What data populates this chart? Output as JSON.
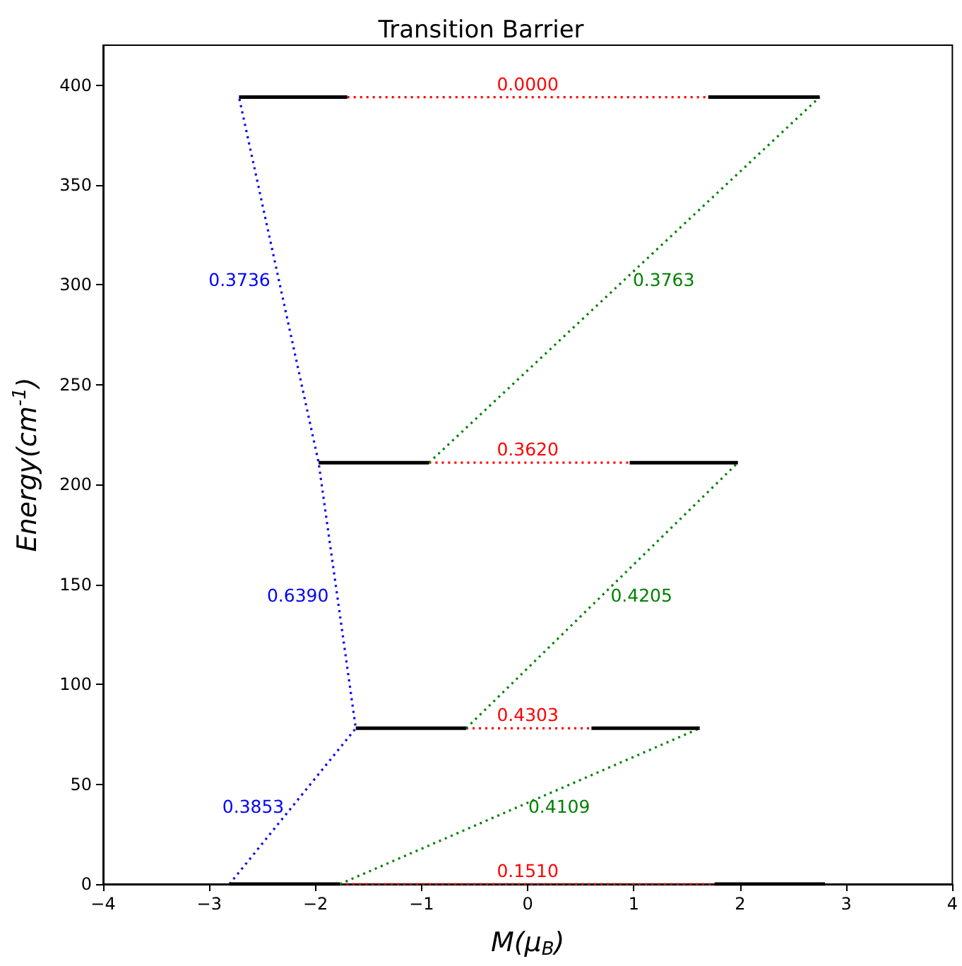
{
  "chart_data": {
    "type": "line",
    "title": "Transition Barrier",
    "xlabel": "M(μ$_{B}$)",
    "ylabel": "Energy(cm$^{-1}$)",
    "xlim": [
      -4,
      4
    ],
    "xticks": [
      -4,
      -3,
      -2,
      -1,
      0,
      1,
      2,
      3,
      4
    ],
    "ylim": [
      0,
      420
    ],
    "yticks": [
      0,
      50,
      100,
      150,
      200,
      250,
      300,
      350,
      400
    ],
    "marker": "none",
    "series": [
      {
        "color": "#ff0000",
        "line_style": "dotted",
        "x": [
          -1.7,
          0,
          1.7
        ],
        "values": [
          394,
          394,
          394
        ]
      },
      {
        "color": "#ff0000",
        "line_style": "dotted",
        "x": [
          -0.93,
          0,
          0.96
        ],
        "values": [
          211,
          211,
          211
        ]
      },
      {
        "color": "#ff0000",
        "line_style": "dotted",
        "x": [
          -0.58,
          0,
          0.6
        ],
        "values": [
          78,
          78,
          78
        ]
      },
      {
        "color": "#ff0000",
        "line_style": "dotted",
        "x": [
          -1.77,
          0,
          1.76
        ],
        "values": [
          0,
          0,
          0
        ]
      },
      {
        "color": "#0000ff",
        "line_style": "dotted",
        "x": [
          -2.81,
          -2.215,
          -1.62,
          -1.795,
          -1.97,
          -2.345,
          -2.72
        ],
        "values": [
          0,
          39,
          78,
          144.5,
          211,
          302.5,
          394
        ]
      },
      {
        "color": "#008000",
        "line_style": "dotted",
        "x": [
          -1.77,
          -0.075,
          1.62
        ],
        "values": [
          0,
          39,
          78
        ]
      },
      {
        "color": "#008000",
        "line_style": "dotted",
        "x": [
          -0.58,
          0.7,
          1.98
        ],
        "values": [
          78,
          144.5,
          211
        ]
      },
      {
        "color": "#008000",
        "line_style": "dotted",
        "x": [
          -0.93,
          0.91,
          2.75
        ],
        "values": [
          211,
          302.5,
          394
        ]
      },
      {
        "color": "#000000",
        "line_style": "solid",
        "x": [
          -2.72,
          -1.7,
          0,
          1.7,
          2.75
        ],
        "values": [
          394,
          394,
          null,
          394,
          394
        ]
      },
      {
        "color": "#000000",
        "line_style": "solid",
        "x": [
          -1.97,
          -0.93,
          0,
          0.96,
          1.98
        ],
        "values": [
          211,
          211,
          null,
          211,
          211
        ]
      },
      {
        "color": "#000000",
        "line_style": "solid",
        "x": [
          -1.62,
          -0.58,
          0,
          0.6,
          1.62
        ],
        "values": [
          78,
          78,
          null,
          78,
          78
        ]
      },
      {
        "color": "#000000",
        "line_style": "solid",
        "x": [
          -2.81,
          -1.77,
          0,
          1.76,
          2.8
        ],
        "values": [
          0,
          0,
          null,
          0,
          0
        ]
      }
    ],
    "annotations": [
      {
        "text": "0.0000",
        "x": 0,
        "y": 394
      },
      {
        "text": "0.3620",
        "x": 0,
        "y": 211
      },
      {
        "text": "0.4303",
        "x": 0,
        "y": 78
      },
      {
        "text": "0.1510",
        "x": 0,
        "y": 0
      },
      {
        "text": "0.3736",
        "x": -2.345,
        "y": 302.5
      },
      {
        "text": "0.6390",
        "x": -1.795,
        "y": 144.5
      },
      {
        "text": "0.3853",
        "x": -2.215,
        "y": 39
      },
      {
        "text": "0.3763",
        "x": 0.91,
        "y": 302.5
      },
      {
        "text": "0.4205",
        "x": 0.7,
        "y": 144.5
      },
      {
        "text": "0.4109",
        "x": -0.075,
        "y": 39
      }
    ]
  }
}
